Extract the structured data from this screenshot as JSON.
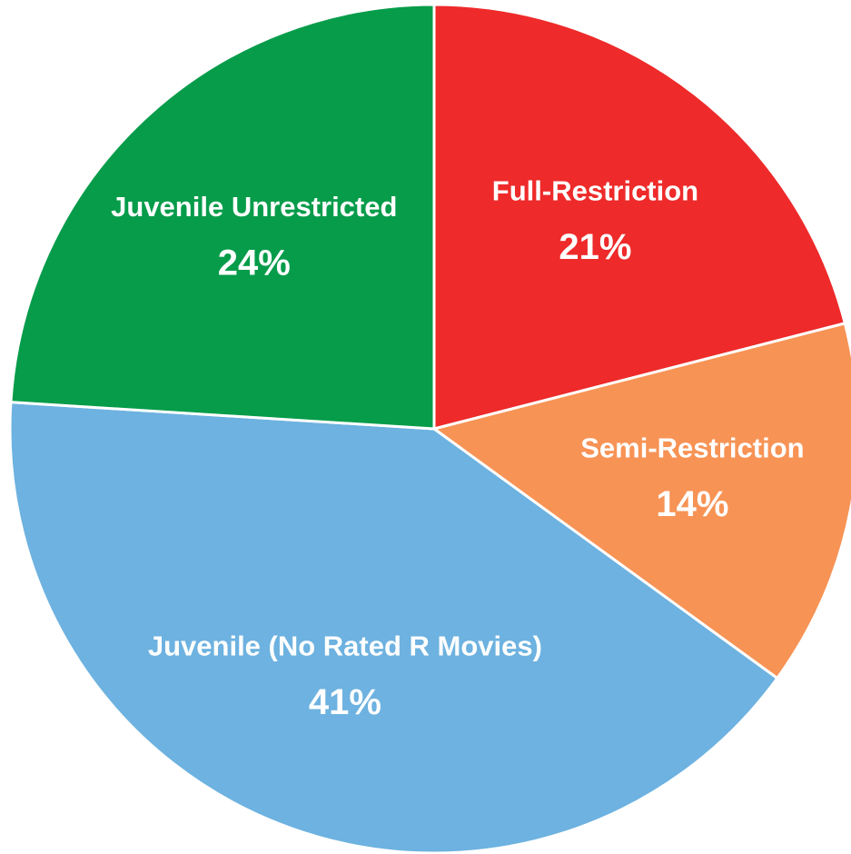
{
  "chart_data": {
    "type": "pie",
    "categories": [
      "Full-Restriction",
      "Semi-Restriction",
      "Juvenile (No Rated R Movies)",
      "Juvenile Unrestricted"
    ],
    "values": [
      21,
      14,
      41,
      24
    ],
    "value_labels": [
      "21%",
      "14%",
      "41%",
      "24%"
    ],
    "colors": [
      "#ee2a2a",
      "#f79355",
      "#6db2e0",
      "#069c4a"
    ]
  }
}
